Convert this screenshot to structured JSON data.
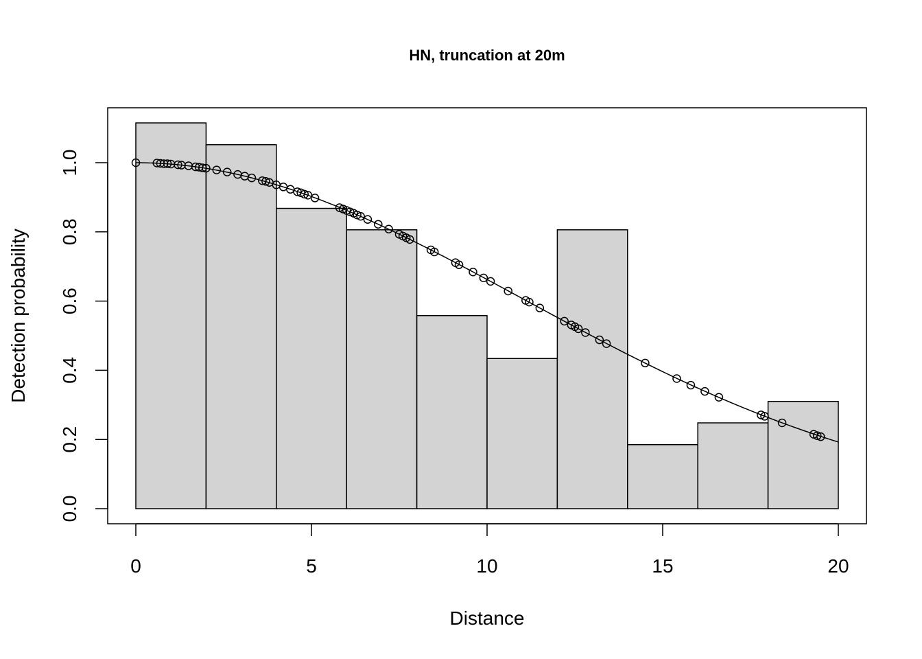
{
  "chart_data": {
    "type": "bar",
    "title": "HN, truncation at 20m",
    "xlabel": "Distance",
    "ylabel": "Detection probability",
    "xlim": [
      0,
      20
    ],
    "ylim": [
      0,
      1.12
    ],
    "xticks": [
      "0",
      "5",
      "10",
      "15",
      "20"
    ],
    "yticks": [
      "0.0",
      "0.2",
      "0.4",
      "0.6",
      "0.8",
      "1.0"
    ],
    "grid": false,
    "colors": {
      "bar_fill": "#d3d3d3",
      "stroke": "#000000"
    },
    "histogram": {
      "bin_edges": [
        0,
        2,
        4,
        6,
        8,
        10,
        12,
        14,
        16,
        18,
        20
      ],
      "values": [
        1.115,
        1.052,
        0.868,
        0.806,
        0.558,
        0.434,
        0.806,
        0.185,
        0.248,
        0.31
      ]
    },
    "detection_function": {
      "name": "half-normal",
      "sigma": 11.02
    },
    "observations": {
      "x": [
        0.0,
        0.6,
        0.7,
        0.8,
        0.9,
        1.0,
        1.2,
        1.3,
        1.5,
        1.7,
        1.8,
        1.9,
        2.0,
        2.3,
        2.6,
        2.9,
        3.1,
        3.3,
        3.6,
        3.7,
        3.8,
        4.0,
        4.2,
        4.4,
        4.6,
        4.7,
        4.8,
        4.9,
        5.1,
        5.8,
        5.9,
        6.0,
        6.1,
        6.2,
        6.3,
        6.4,
        6.6,
        6.9,
        7.2,
        7.5,
        7.6,
        7.7,
        7.8,
        8.4,
        8.5,
        9.1,
        9.2,
        9.6,
        9.9,
        10.1,
        10.6,
        11.1,
        11.2,
        11.5,
        12.2,
        12.4,
        12.5,
        12.6,
        12.8,
        13.2,
        13.4,
        14.5,
        15.4,
        15.8,
        16.2,
        16.6,
        17.8,
        17.9,
        18.4,
        19.3,
        19.4,
        19.5
      ],
      "y": [
        1.0,
        0.999,
        0.998,
        0.997,
        0.997,
        0.996,
        0.994,
        0.993,
        0.991,
        0.988,
        0.987,
        0.985,
        0.984,
        0.979,
        0.973,
        0.966,
        0.961,
        0.956,
        0.948,
        0.946,
        0.943,
        0.936,
        0.93,
        0.923,
        0.916,
        0.913,
        0.909,
        0.906,
        0.898,
        0.87,
        0.866,
        0.862,
        0.858,
        0.854,
        0.849,
        0.845,
        0.836,
        0.822,
        0.808,
        0.793,
        0.788,
        0.783,
        0.778,
        0.748,
        0.742,
        0.711,
        0.705,
        0.684,
        0.667,
        0.657,
        0.629,
        0.602,
        0.597,
        0.58,
        0.542,
        0.531,
        0.526,
        0.52,
        0.509,
        0.488,
        0.477,
        0.421,
        0.376,
        0.357,
        0.339,
        0.322,
        0.271,
        0.267,
        0.248,
        0.215,
        0.211,
        0.208
      ]
    }
  }
}
